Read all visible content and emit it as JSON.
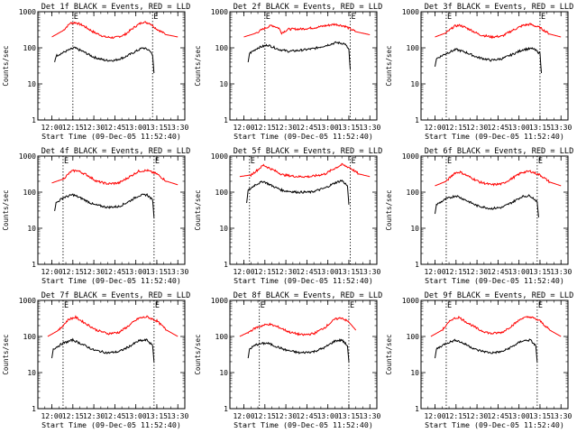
{
  "chart_data": [
    {
      "type": "line",
      "title": "Det 1f BLACK = Events, RED = LLD",
      "xlabel": "Start Time (09-Dec-05 11:52:40)",
      "ylabel": "Counts/sec",
      "yscale": "log",
      "ylim": [
        1,
        1000
      ],
      "ytick_labels": [
        "1",
        "10",
        "100",
        "1000"
      ],
      "x_tick_labels": [
        "12:00",
        "12:15",
        "12:30",
        "12:45",
        "13:00",
        "13:15",
        "13:30"
      ],
      "flag_labels": [
        "E",
        "E"
      ],
      "series": [
        {
          "name": "LLD",
          "color": "#ff0000",
          "x": [
            "12:00",
            "12:08",
            "12:13",
            "12:17",
            "12:22",
            "12:30",
            "12:38",
            "12:45",
            "12:52",
            "13:00",
            "13:05",
            "13:10",
            "13:15",
            "13:22",
            "13:30"
          ],
          "y": [
            200,
            300,
            480,
            500,
            420,
            270,
            200,
            190,
            230,
            400,
            520,
            480,
            330,
            230,
            200
          ]
        },
        {
          "name": "Events",
          "color": "#000000",
          "x": [
            "12:02",
            "12:03",
            "12:10",
            "12:16",
            "12:22",
            "12:30",
            "12:38",
            "12:45",
            "12:52",
            "13:00",
            "13:05",
            "13:10",
            "13:12",
            "13:13"
          ],
          "y": [
            40,
            60,
            80,
            100,
            80,
            55,
            45,
            45,
            55,
            80,
            100,
            85,
            60,
            20
          ]
        }
      ]
    },
    {
      "type": "line",
      "title": "Det 2f BLACK = Events, RED = LLD",
      "xlabel": "Start Time (09-Dec-05 11:52:40)",
      "ylabel": "Counts/sec",
      "yscale": "log",
      "ylim": [
        1,
        1000
      ],
      "ytick_labels": [
        "1",
        "10",
        "100",
        "1000"
      ],
      "x_tick_labels": [
        "12:00",
        "12:15",
        "12:30",
        "12:45",
        "13:00",
        "13:15",
        "13:30"
      ],
      "flag_labels": [
        "E",
        "E"
      ],
      "series": [
        {
          "name": "LLD",
          "color": "#ff0000",
          "x": [
            "12:00",
            "12:08",
            "12:15",
            "12:20",
            "12:25",
            "12:27",
            "12:32",
            "12:40",
            "12:50",
            "13:00",
            "13:05",
            "13:12",
            "13:20",
            "13:30"
          ],
          "y": [
            200,
            250,
            350,
            420,
            350,
            260,
            330,
            330,
            360,
            420,
            450,
            400,
            280,
            230
          ]
        },
        {
          "name": "Events",
          "color": "#000000",
          "x": [
            "12:03",
            "12:04",
            "12:10",
            "12:17",
            "12:25",
            "12:32",
            "12:40",
            "12:50",
            "13:00",
            "13:06",
            "13:12",
            "13:15",
            "13:16"
          ],
          "y": [
            40,
            70,
            100,
            120,
            90,
            80,
            85,
            95,
            120,
            140,
            130,
            90,
            25
          ]
        }
      ]
    },
    {
      "type": "line",
      "title": "Det 3f BLACK = Events, RED = LLD",
      "xlabel": "Start Time (09-Dec-05 11:52:40)",
      "ylabel": "Counts/sec",
      "yscale": "log",
      "ylim": [
        1,
        1000
      ],
      "ytick_labels": [
        "1",
        "10",
        "100",
        "1000"
      ],
      "x_tick_labels": [
        "12:00",
        "12:15",
        "12:30",
        "12:45",
        "13:00",
        "13:15",
        "13:30"
      ],
      "flag_labels": [
        "E",
        "E"
      ],
      "series": [
        {
          "name": "LLD",
          "color": "#ff0000",
          "x": [
            "12:00",
            "12:08",
            "12:14",
            "12:18",
            "12:25",
            "12:32",
            "12:40",
            "12:48",
            "12:55",
            "13:03",
            "13:08",
            "13:15",
            "13:22",
            "13:30"
          ],
          "y": [
            200,
            260,
            400,
            420,
            320,
            230,
            200,
            210,
            300,
            420,
            450,
            360,
            240,
            200
          ]
        },
        {
          "name": "Events",
          "color": "#000000",
          "x": [
            "12:00",
            "12:01",
            "12:08",
            "12:15",
            "12:22",
            "12:30",
            "12:40",
            "12:48",
            "12:55",
            "13:03",
            "13:10",
            "13:15",
            "13:16"
          ],
          "y": [
            30,
            50,
            70,
            90,
            75,
            55,
            45,
            50,
            65,
            90,
            95,
            70,
            20
          ]
        }
      ]
    },
    {
      "type": "line",
      "title": "Det 4f BLACK = Events, RED = LLD",
      "xlabel": "Start Time (09-Dec-05 11:52:40)",
      "ylabel": "Counts/sec",
      "yscale": "log",
      "ylim": [
        1,
        1000
      ],
      "ytick_labels": [
        "1",
        "10",
        "100",
        "1000"
      ],
      "x_tick_labels": [
        "12:00",
        "12:15",
        "12:30",
        "12:45",
        "13:00",
        "13:15",
        "13:30"
      ],
      "flag_labels": [
        "E",
        "E"
      ],
      "series": [
        {
          "name": "LLD",
          "color": "#ff0000",
          "x": [
            "12:00",
            "12:08",
            "12:14",
            "12:18",
            "12:25",
            "12:32",
            "12:40",
            "12:48",
            "12:55",
            "13:02",
            "13:08",
            "13:15",
            "13:22",
            "13:30"
          ],
          "y": [
            180,
            230,
            380,
            400,
            300,
            200,
            170,
            180,
            260,
            380,
            400,
            320,
            200,
            160
          ]
        },
        {
          "name": "Events",
          "color": "#000000",
          "x": [
            "12:02",
            "12:03",
            "12:08",
            "12:15",
            "12:22",
            "12:30",
            "12:40",
            "12:48",
            "12:55",
            "13:02",
            "13:08",
            "13:12",
            "13:13"
          ],
          "y": [
            30,
            50,
            70,
            85,
            65,
            45,
            38,
            40,
            55,
            80,
            85,
            60,
            20
          ]
        }
      ]
    },
    {
      "type": "line",
      "title": "Det 5f BLACK = Events, RED = LLD",
      "xlabel": "Start Time (09-Dec-05 11:52:40)",
      "ylabel": "Counts/sec",
      "yscale": "log",
      "ylim": [
        1,
        1000
      ],
      "ytick_labels": [
        "1",
        "10",
        "100",
        "1000"
      ],
      "x_tick_labels": [
        "12:00",
        "12:15",
        "12:30",
        "12:45",
        "13:00",
        "13:15",
        "13:30"
      ],
      "flag_labels": [
        "E",
        "E"
      ],
      "series": [
        {
          "name": "LLD",
          "color": "#ff0000",
          "x": [
            "11:57",
            "12:05",
            "12:10",
            "12:14",
            "12:20",
            "12:28",
            "12:38",
            "12:48",
            "12:58",
            "13:05",
            "13:10",
            "13:16",
            "13:22",
            "13:30"
          ],
          "y": [
            270,
            300,
            420,
            560,
            430,
            300,
            270,
            270,
            320,
            460,
            580,
            470,
            320,
            270
          ]
        },
        {
          "name": "Events",
          "color": "#000000",
          "x": [
            "12:02",
            "12:03",
            "12:08",
            "12:14",
            "12:20",
            "12:28",
            "12:38",
            "12:48",
            "12:58",
            "13:05",
            "13:10",
            "13:14",
            "13:15"
          ],
          "y": [
            50,
            110,
            160,
            200,
            150,
            110,
            100,
            100,
            130,
            180,
            210,
            150,
            45
          ]
        }
      ]
    },
    {
      "type": "line",
      "title": "Det 6f BLACK = Events, RED = LLD",
      "xlabel": "Start Time (09-Dec-05 11:52:40)",
      "ylabel": "Counts/sec",
      "yscale": "log",
      "ylim": [
        1,
        1000
      ],
      "ytick_labels": [
        "1",
        "10",
        "100",
        "1000"
      ],
      "x_tick_labels": [
        "12:00",
        "12:15",
        "12:30",
        "12:45",
        "13:00",
        "13:15",
        "13:30"
      ],
      "flag_labels": [
        "E",
        "E"
      ],
      "series": [
        {
          "name": "LLD",
          "color": "#ff0000",
          "x": [
            "12:00",
            "12:08",
            "12:14",
            "12:18",
            "12:25",
            "12:32",
            "12:40",
            "12:48",
            "12:55",
            "13:02",
            "13:08",
            "13:15",
            "13:22",
            "13:30"
          ],
          "y": [
            150,
            200,
            340,
            360,
            260,
            190,
            160,
            170,
            240,
            350,
            380,
            300,
            190,
            150
          ]
        },
        {
          "name": "Events",
          "color": "#000000",
          "x": [
            "12:00",
            "12:01",
            "12:08",
            "12:15",
            "12:22",
            "12:30",
            "12:40",
            "12:48",
            "12:55",
            "13:02",
            "13:08",
            "13:13",
            "13:14"
          ],
          "y": [
            25,
            45,
            65,
            80,
            60,
            42,
            35,
            38,
            52,
            75,
            80,
            55,
            20
          ]
        }
      ]
    },
    {
      "type": "line",
      "title": "Det 7f BLACK = Events, RED = LLD",
      "xlabel": "Start Time (09-Dec-05 11:52:40)",
      "ylabel": "Counts/sec",
      "yscale": "log",
      "ylim": [
        1,
        1000
      ],
      "ytick_labels": [
        "1",
        "10",
        "100",
        "1000"
      ],
      "x_tick_labels": [
        "12:00",
        "12:15",
        "12:30",
        "12:45",
        "13:00",
        "13:15",
        "13:30"
      ],
      "flag_labels": [
        "E",
        "E"
      ],
      "series": [
        {
          "name": "LLD",
          "color": "#ff0000",
          "x": [
            "11:57",
            "12:05",
            "12:12",
            "12:17",
            "12:24",
            "12:32",
            "12:40",
            "12:48",
            "12:55",
            "13:02",
            "13:08",
            "13:15",
            "13:22",
            "13:30"
          ],
          "y": [
            100,
            150,
            300,
            340,
            230,
            150,
            120,
            130,
            200,
            320,
            350,
            270,
            150,
            100
          ]
        },
        {
          "name": "Events",
          "color": "#000000",
          "x": [
            "12:00",
            "12:01",
            "12:08",
            "12:15",
            "12:22",
            "12:30",
            "12:40",
            "12:48",
            "12:55",
            "13:02",
            "13:08",
            "13:12",
            "13:13"
          ],
          "y": [
            25,
            45,
            65,
            80,
            60,
            42,
            35,
            38,
            52,
            75,
            80,
            55,
            20
          ]
        }
      ]
    },
    {
      "type": "line",
      "title": "Det 8f BLACK = Events, RED = LLD",
      "xlabel": "Start Time (09-Dec-05 11:52:40)",
      "ylabel": "Counts/sec",
      "yscale": "log",
      "ylim": [
        1,
        1000
      ],
      "ytick_labels": [
        "1",
        "10",
        "100",
        "1000"
      ],
      "x_tick_labels": [
        "12:00",
        "12:15",
        "12:30",
        "12:45",
        "13:00",
        "13:15",
        "13:30"
      ],
      "flag_labels": [
        "E",
        "E"
      ],
      "series": [
        {
          "name": "LLD",
          "color": "#ff0000",
          "x": [
            "11:57",
            "12:03",
            "12:08",
            "12:13",
            "12:18",
            "12:25",
            "12:33",
            "12:42",
            "12:50",
            "12:58",
            "13:05",
            "13:10",
            "13:15",
            "13:20"
          ],
          "y": [
            100,
            130,
            170,
            200,
            220,
            180,
            130,
            110,
            120,
            180,
            300,
            330,
            250,
            150
          ]
        },
        {
          "name": "Events",
          "color": "#000000",
          "x": [
            "12:03",
            "12:04",
            "12:09",
            "12:15",
            "12:17",
            "12:22",
            "12:30",
            "12:40",
            "12:50",
            "12:58",
            "13:05",
            "13:10",
            "13:14",
            "13:15"
          ],
          "y": [
            25,
            45,
            60,
            65,
            65,
            55,
            42,
            35,
            38,
            50,
            75,
            80,
            55,
            20
          ]
        }
      ]
    },
    {
      "type": "line",
      "title": "Det 9f BLACK = Events, RED = LLD",
      "xlabel": "Start Time (09-Dec-05 11:52:40)",
      "ylabel": "Counts/sec",
      "yscale": "log",
      "ylim": [
        1,
        1000
      ],
      "ytick_labels": [
        "1",
        "10",
        "100",
        "1000"
      ],
      "x_tick_labels": [
        "12:00",
        "12:15",
        "12:30",
        "12:45",
        "13:00",
        "13:15",
        "13:30"
      ],
      "flag_labels": [
        "E",
        "E"
      ],
      "series": [
        {
          "name": "LLD",
          "color": "#ff0000",
          "x": [
            "11:57",
            "12:05",
            "12:12",
            "12:17",
            "12:24",
            "12:32",
            "12:40",
            "12:48",
            "12:55",
            "13:02",
            "13:08",
            "13:15",
            "13:22",
            "13:30"
          ],
          "y": [
            100,
            150,
            300,
            340,
            230,
            150,
            120,
            130,
            200,
            320,
            350,
            270,
            150,
            100
          ]
        },
        {
          "name": "Events",
          "color": "#000000",
          "x": [
            "12:00",
            "12:01",
            "12:08",
            "12:15",
            "12:22",
            "12:30",
            "12:40",
            "12:48",
            "12:55",
            "13:02",
            "13:08",
            "13:12",
            "13:13"
          ],
          "y": [
            25,
            45,
            65,
            80,
            60,
            42,
            35,
            38,
            52,
            75,
            80,
            55,
            20
          ]
        }
      ]
    }
  ]
}
